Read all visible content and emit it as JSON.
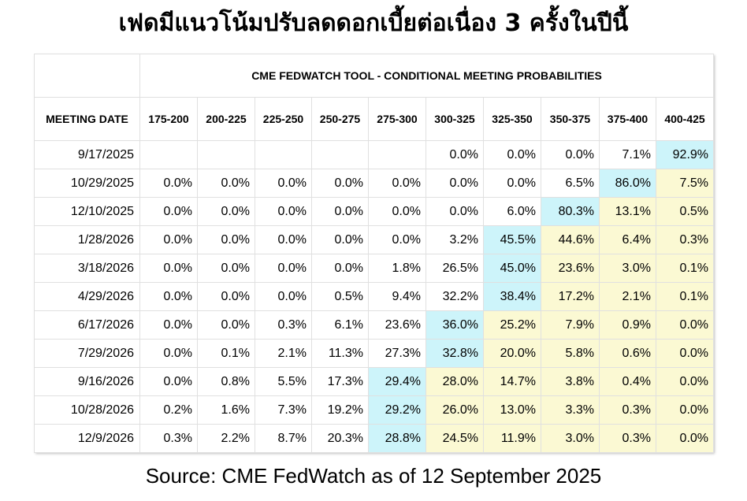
{
  "title": "เฟดมีแนวโน้มปรับลดดอกเบี้ยต่อเนื่อง 3 ครั้งในปีนี้",
  "source": "Source: CME FedWatch as of 12 September 2025",
  "colors": {
    "current_target": "#cdf4fa",
    "higher_range": "#fbf9d3",
    "default": "#ffffff"
  },
  "chart_data": {
    "type": "table",
    "title": "CME FEDWATCH TOOL - CONDITIONAL MEETING PROBABILITIES",
    "row_header": "MEETING DATE",
    "columns": [
      "175-200",
      "200-225",
      "225-250",
      "250-275",
      "275-300",
      "300-325",
      "325-350",
      "350-375",
      "375-400",
      "400-425"
    ],
    "rows": [
      {
        "date": "9/17/2025",
        "values": [
          "",
          "",
          "",
          "",
          "",
          "0.0%",
          "0.0%",
          "0.0%",
          "7.1%",
          "92.9%"
        ],
        "highlight": 9
      },
      {
        "date": "10/29/2025",
        "values": [
          "0.0%",
          "0.0%",
          "0.0%",
          "0.0%",
          "0.0%",
          "0.0%",
          "0.0%",
          "6.5%",
          "86.0%",
          "7.5%"
        ],
        "highlight": 8
      },
      {
        "date": "12/10/2025",
        "values": [
          "0.0%",
          "0.0%",
          "0.0%",
          "0.0%",
          "0.0%",
          "0.0%",
          "6.0%",
          "80.3%",
          "13.1%",
          "0.5%"
        ],
        "highlight": 7
      },
      {
        "date": "1/28/2026",
        "values": [
          "0.0%",
          "0.0%",
          "0.0%",
          "0.0%",
          "0.0%",
          "3.2%",
          "45.5%",
          "44.6%",
          "6.4%",
          "0.3%"
        ],
        "highlight": 6
      },
      {
        "date": "3/18/2026",
        "values": [
          "0.0%",
          "0.0%",
          "0.0%",
          "0.0%",
          "1.8%",
          "26.5%",
          "45.0%",
          "23.6%",
          "3.0%",
          "0.1%"
        ],
        "highlight": 6
      },
      {
        "date": "4/29/2026",
        "values": [
          "0.0%",
          "0.0%",
          "0.0%",
          "0.5%",
          "9.4%",
          "32.2%",
          "38.4%",
          "17.2%",
          "2.1%",
          "0.1%"
        ],
        "highlight": 6
      },
      {
        "date": "6/17/2026",
        "values": [
          "0.0%",
          "0.0%",
          "0.3%",
          "6.1%",
          "23.6%",
          "36.0%",
          "25.2%",
          "7.9%",
          "0.9%",
          "0.0%"
        ],
        "highlight": 5
      },
      {
        "date": "7/29/2026",
        "values": [
          "0.0%",
          "0.1%",
          "2.1%",
          "11.3%",
          "27.3%",
          "32.8%",
          "20.0%",
          "5.8%",
          "0.6%",
          "0.0%"
        ],
        "highlight": 5
      },
      {
        "date": "9/16/2026",
        "values": [
          "0.0%",
          "0.8%",
          "5.5%",
          "17.3%",
          "29.4%",
          "28.0%",
          "14.7%",
          "3.8%",
          "0.4%",
          "0.0%"
        ],
        "highlight": 4
      },
      {
        "date": "10/28/2026",
        "values": [
          "0.2%",
          "1.6%",
          "7.3%",
          "19.2%",
          "29.2%",
          "26.0%",
          "13.0%",
          "3.3%",
          "0.3%",
          "0.0%"
        ],
        "highlight": 4
      },
      {
        "date": "12/9/2026",
        "values": [
          "0.3%",
          "2.2%",
          "8.7%",
          "20.3%",
          "28.8%",
          "24.5%",
          "11.9%",
          "3.0%",
          "0.3%",
          "0.0%"
        ],
        "highlight": 4
      }
    ]
  }
}
